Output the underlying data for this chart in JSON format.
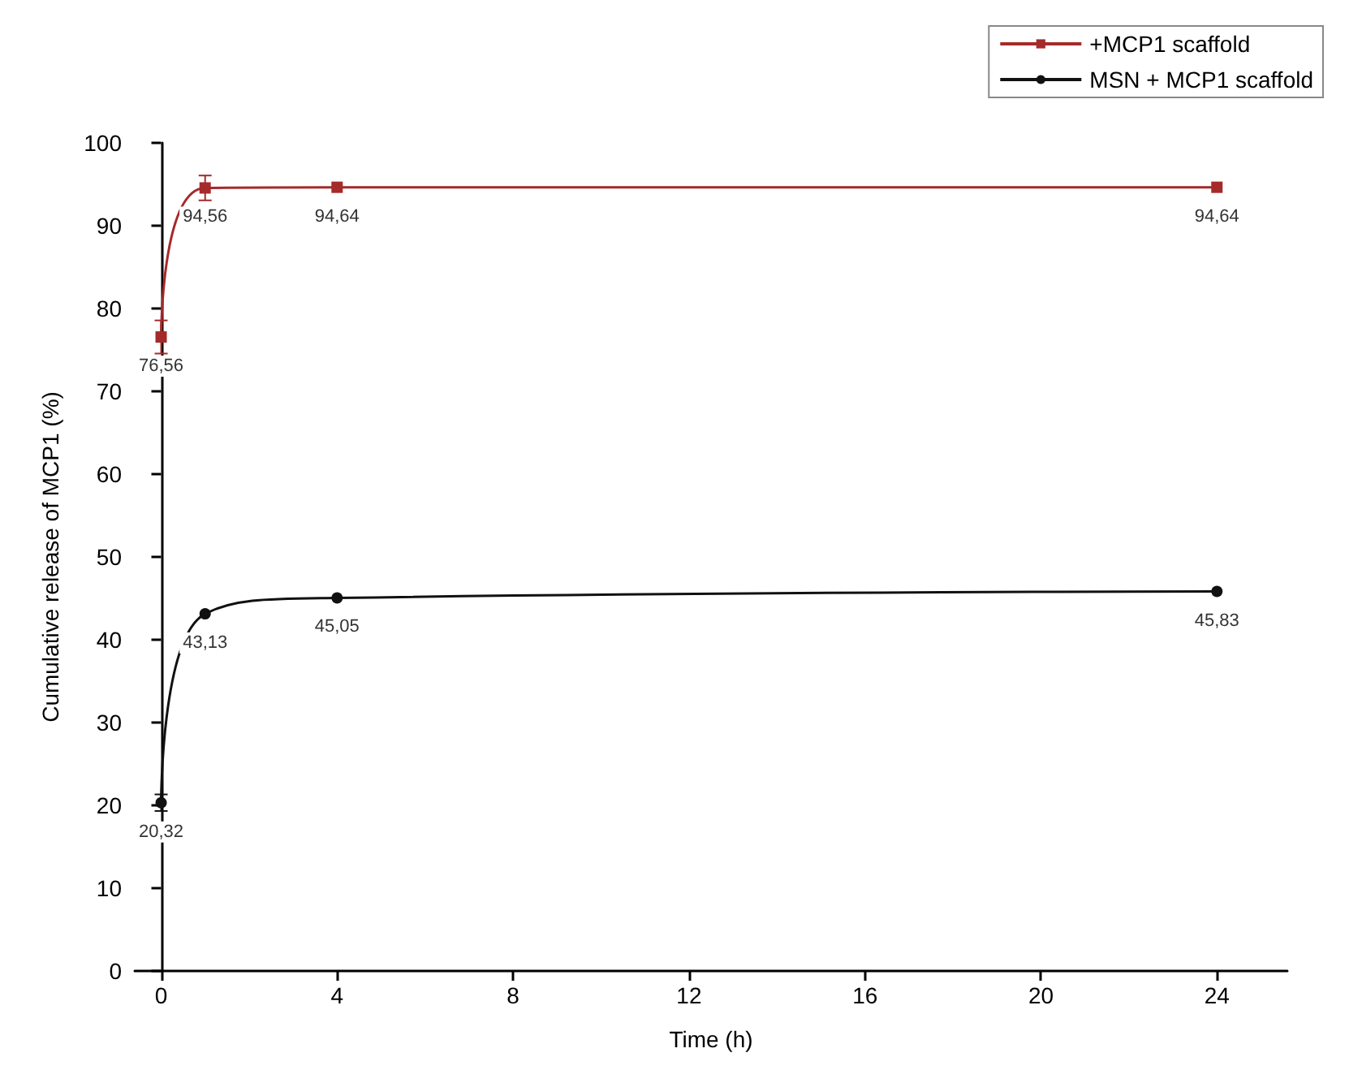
{
  "chart_data": {
    "type": "line",
    "xlabel": "Time (h)",
    "ylabel": "Cumulative release of MCP1 (%)",
    "x": [
      0,
      1,
      4,
      24
    ],
    "series": [
      {
        "name": "+MCP1 scaffold",
        "color": "#a52a2a",
        "marker": "square",
        "values": [
          76.56,
          94.56,
          94.64,
          94.64
        ],
        "errors": [
          2,
          1.5,
          null,
          null
        ],
        "value_labels": [
          "76,56",
          "94,56",
          "94,64",
          "94,64"
        ]
      },
      {
        "name": "MSN + MCP1 scaffold",
        "color": "#111111",
        "marker": "circle",
        "values": [
          20.32,
          43.13,
          45.05,
          45.83
        ],
        "errors": [
          1,
          null,
          null,
          null
        ],
        "value_labels": [
          "20,32",
          "43,13",
          "45,05",
          "45,83"
        ]
      }
    ],
    "xlim": [
      -0.6,
      25.6
    ],
    "xticks": [
      0,
      4,
      8,
      12,
      16,
      20,
      24
    ],
    "ylim": [
      0,
      100
    ],
    "yticks": [
      0,
      10,
      20,
      30,
      40,
      50,
      60,
      70,
      80,
      90,
      100
    ],
    "grid": false,
    "legend": "top right",
    "line_style": "solid"
  }
}
